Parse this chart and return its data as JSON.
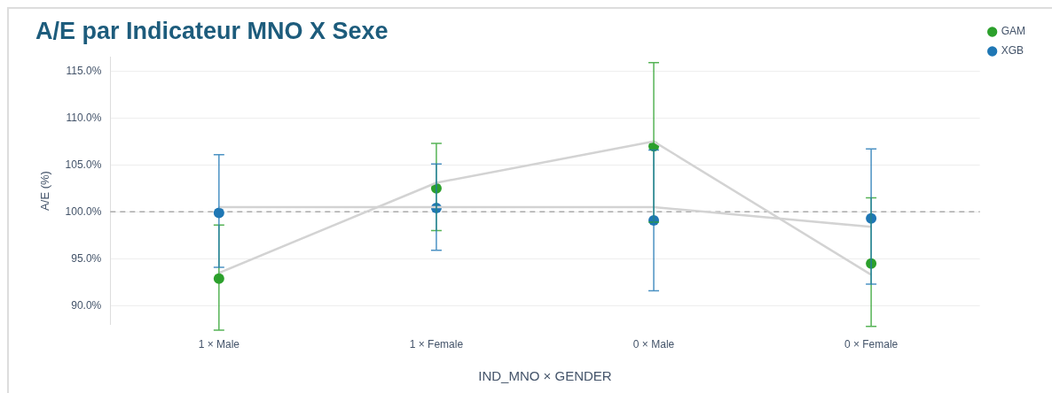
{
  "chart_data": {
    "type": "scatter",
    "title": "A/E par Indicateur MNO X Sexe",
    "xlabel": "IND_MNO × GENDER",
    "ylabel": "A/E (%)",
    "categories": [
      "1 × Male",
      "1 × Female",
      "0 × Male",
      "0 × Female"
    ],
    "series": [
      {
        "type": "line",
        "marker": "none",
        "color": "#d3d3d3",
        "values": [
          93.5,
          103.1,
          107.5,
          93.3
        ]
      },
      {
        "type": "line",
        "marker": "none",
        "color": "#d3d3d3",
        "values": [
          100.5,
          100.5,
          100.5,
          98.4
        ]
      },
      {
        "name": "GAM",
        "color": "#2ca02c",
        "values": [
          92.9,
          102.5,
          107.0,
          94.5
        ],
        "errors": [
          [
            87.4,
            98.6
          ],
          [
            98.0,
            107.3
          ],
          [
            98.9,
            115.9
          ],
          [
            87.8,
            101.5
          ]
        ]
      },
      {
        "name": "XGB",
        "color": "#1f77b4",
        "values": [
          99.9,
          100.4,
          99.1,
          99.3
        ],
        "errors": [
          [
            94.1,
            106.1
          ],
          [
            95.9,
            105.1
          ],
          [
            91.6,
            106.6
          ],
          [
            92.3,
            106.7
          ]
        ]
      }
    ],
    "ylim": [
      88,
      116.5
    ],
    "yticks": [
      {
        "value": 90,
        "label": "90.0%"
      },
      {
        "value": 95,
        "label": "95.0%"
      },
      {
        "value": 100,
        "label": "100.0%"
      },
      {
        "value": 105,
        "label": "105.0%"
      },
      {
        "value": 110,
        "label": "110.0%"
      },
      {
        "value": 115,
        "label": "115.0%"
      }
    ],
    "ref_lines": [
      {
        "axis": "y",
        "value": 100,
        "color": "#aaaaaa",
        "line_style": "dashed"
      }
    ],
    "grid": "y",
    "legend": "top right",
    "marker": "circle",
    "line_style": "solid"
  }
}
